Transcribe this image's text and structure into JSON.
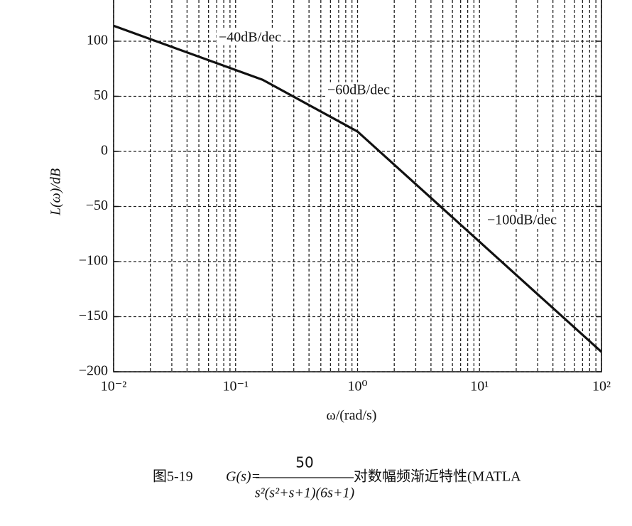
{
  "chart_data": {
    "type": "line",
    "y_label": "L(ω)/dB",
    "x_label": "ω/(rad/s)",
    "x_log": true,
    "grid": true,
    "grid_style": "dashed",
    "x": [
      0.01,
      0.1667,
      1,
      100
    ],
    "series": [
      {
        "color": "#111111",
        "values": [
          114,
          65,
          18,
          -182
        ]
      }
    ],
    "xlim": [
      0.01,
      100
    ],
    "ylim": [
      -200,
      137.4
    ],
    "xticks": [
      {
        "value": 0.01,
        "label": "10⁻²"
      },
      {
        "value": 0.1,
        "label": "10⁻¹"
      },
      {
        "value": 1,
        "label": "10⁰"
      },
      {
        "value": 10,
        "label": "10¹"
      },
      {
        "value": 100,
        "label": "10²"
      }
    ],
    "xminor": [
      0.02,
      0.03,
      0.04,
      0.05,
      0.06,
      0.07,
      0.08,
      0.09,
      0.2,
      0.3,
      0.4,
      0.5,
      0.6,
      0.7,
      0.8,
      0.9,
      2,
      3,
      4,
      5,
      6,
      7,
      8,
      9,
      20,
      30,
      40,
      50,
      60,
      70,
      80,
      90
    ],
    "yticks": [
      {
        "value": -200,
        "label": "−200"
      },
      {
        "value": -150,
        "label": "−150"
      },
      {
        "value": -100,
        "label": "−100"
      },
      {
        "value": -50,
        "label": "−50"
      },
      0,
      50,
      100
    ],
    "annotations": [
      "−40dB/dec",
      "−60dB/dec",
      "−100dB/dec"
    ]
  },
  "caption": {
    "figure": "图5-19",
    "lhs": "G(s)=",
    "numerator": "50",
    "denominator": "s²(s²+s+1)(6s+1)",
    "text": "对数幅频渐近特性(MATLA"
  }
}
